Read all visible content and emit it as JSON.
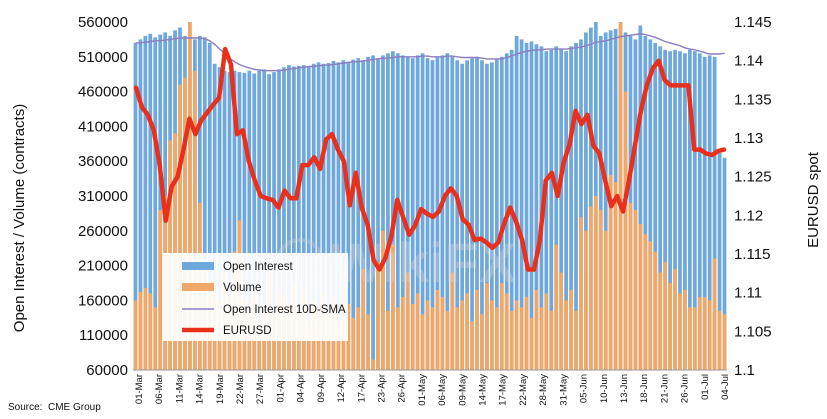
{
  "chart_data": {
    "type": "bar+line",
    "ylabel_left": "Open Interest / Volume (contracts)",
    "ylabel_right": "EURUSD spot",
    "left_ylim": [
      60000,
      560000
    ],
    "left_ticks": [
      "60000",
      "110000",
      "160000",
      "210000",
      "260000",
      "310000",
      "360000",
      "410000",
      "460000",
      "510000",
      "560000"
    ],
    "right_ylim": [
      1.1,
      1.145
    ],
    "right_ticks": [
      "1.1",
      "1.105",
      "1.11",
      "1.115",
      "1.12",
      "1.125",
      "1.13",
      "1.135",
      "1.14",
      "1.145"
    ],
    "x_tick_labels": [
      "01-Mar",
      "06-Mar",
      "11-Mar",
      "14-Mar",
      "19-Mar",
      "22-Mar",
      "27-Mar",
      "01-Apr",
      "04-Apr",
      "09-Apr",
      "12-Apr",
      "17-Apr",
      "23-Apr",
      "26-Apr",
      "01-May",
      "06-May",
      "09-May",
      "14-May",
      "17-May",
      "22-May",
      "28-May",
      "31-May",
      "05-Jun",
      "10-Jun",
      "13-Jun",
      "18-Jun",
      "21-Jun",
      "26-Jun",
      "01-Jul",
      "04-Jul"
    ],
    "legend": [
      {
        "name": "Open Interest",
        "color": "#6fa8dc"
      },
      {
        "name": "Volume",
        "color": "#f0a868"
      },
      {
        "name": "Open Interest 10D-SMA",
        "color": "#8e7cc3"
      },
      {
        "name": "EURUSD",
        "color": "#e8301c"
      }
    ],
    "source_label": "Source:",
    "source_value": "CME Group",
    "series": [
      {
        "name": "Open Interest",
        "values": [
          530000,
          535000,
          540000,
          543000,
          538000,
          542000,
          545000,
          540000,
          548000,
          552000,
          540000,
          538000,
          535000,
          540000,
          538000,
          530000,
          500000,
          495000,
          490000,
          488000,
          490000,
          488000,
          487000,
          490000,
          486000,
          490000,
          492000,
          485000,
          488000,
          492000,
          495000,
          498000,
          496000,
          497000,
          498000,
          496000,
          500000,
          502000,
          500000,
          501000,
          504000,
          502000,
          505000,
          503000,
          506000,
          508000,
          505000,
          510000,
          512000,
          508000,
          512000,
          515000,
          518000,
          515000,
          512000,
          510000,
          508000,
          512000,
          515000,
          508000,
          505000,
          510000,
          512000,
          515000,
          510000,
          505000,
          500000,
          505000,
          508000,
          510000,
          505000,
          500000,
          502000,
          506000,
          510000,
          515000,
          520000,
          540000,
          535000,
          530000,
          532000,
          528000,
          525000,
          518000,
          520000,
          525000,
          522000,
          518000,
          525000,
          530000,
          535000,
          545000,
          552000,
          560000,
          540000,
          545000,
          548000,
          550000,
          555000,
          545000,
          540000,
          535000,
          555000,
          540000,
          535000,
          530000,
          525000,
          520000,
          518000,
          520000,
          518000,
          515000,
          520000,
          518000,
          515000,
          510000,
          512000,
          510000,
          372000,
          365000
        ]
      },
      {
        "name": "Volume",
        "values": [
          160000,
          172000,
          178000,
          170000,
          150000,
          290000,
          310000,
          390000,
          400000,
          470000,
          480000,
          560000,
          490000,
          300000,
          215000,
          190000,
          175000,
          160000,
          200000,
          165000,
          230000,
          275000,
          160000,
          150000,
          170000,
          130000,
          145000,
          200000,
          140000,
          175000,
          165000,
          155000,
          185000,
          145000,
          175000,
          130000,
          160000,
          150000,
          170000,
          140000,
          165000,
          130000,
          180000,
          155000,
          135000,
          150000,
          205000,
          140000,
          75000,
          215000,
          260000,
          145000,
          240000,
          150000,
          165000,
          200000,
          155000,
          170000,
          140000,
          160000,
          150000,
          175000,
          165000,
          145000,
          200000,
          150000,
          160000,
          170000,
          130000,
          175000,
          140000,
          185000,
          160000,
          150000,
          185000,
          170000,
          145000,
          160000,
          150000,
          165000,
          135000,
          175000,
          150000,
          170000,
          145000,
          240000,
          200000,
          160000,
          175000,
          145000,
          280000,
          260000,
          295000,
          310000,
          290000,
          260000,
          340000,
          330000,
          560000,
          460000,
          300000,
          290000,
          270000,
          255000,
          245000,
          230000,
          200000,
          215000,
          185000,
          205000,
          170000,
          175000,
          150000,
          150000,
          165000,
          165000,
          160000,
          220000,
          145000,
          140000
        ]
      },
      {
        "name": "Open Interest 10D-SMA",
        "values": [
          530000,
          530000,
          531000,
          532000,
          533000,
          533000,
          534000,
          535000,
          536000,
          537000,
          537000,
          537000,
          537000,
          537000,
          536000,
          533000,
          528000,
          521000,
          515000,
          508000,
          503000,
          499000,
          496000,
          494000,
          492000,
          491000,
          490000,
          490000,
          490000,
          490000,
          491000,
          492000,
          493000,
          494000,
          495000,
          496000,
          496000,
          497000,
          498000,
          498000,
          499000,
          500000,
          501000,
          502000,
          503000,
          503000,
          504000,
          505000,
          506000,
          507000,
          508000,
          508000,
          509000,
          510000,
          510000,
          510000,
          510000,
          510000,
          511000,
          511000,
          510000,
          510000,
          510000,
          511000,
          511000,
          510000,
          509000,
          509000,
          509000,
          509000,
          508000,
          507000,
          507000,
          507000,
          507000,
          509000,
          511000,
          514000,
          516000,
          518000,
          519000,
          520000,
          520000,
          521000,
          521000,
          521000,
          521000,
          521000,
          522000,
          523000,
          524000,
          526000,
          528000,
          531000,
          532000,
          533000,
          535000,
          537000,
          539000,
          540000,
          541000,
          542000,
          543000,
          542000,
          540000,
          538000,
          535000,
          532000,
          530000,
          528000,
          526000,
          523000,
          521000,
          520000,
          518000,
          516000,
          514000,
          514000,
          514000,
          515000
        ]
      },
      {
        "name": "EURUSD",
        "values": [
          1.1365,
          1.134,
          1.133,
          1.131,
          1.1265,
          1.1193,
          1.1237,
          1.125,
          1.1285,
          1.1325,
          1.1305,
          1.1323,
          1.1333,
          1.1343,
          1.1352,
          1.1415,
          1.1395,
          1.1305,
          1.131,
          1.127,
          1.1245,
          1.1225,
          1.1222,
          1.122,
          1.121,
          1.1232,
          1.1222,
          1.1222,
          1.1265,
          1.1265,
          1.1275,
          1.126,
          1.1298,
          1.1305,
          1.1285,
          1.127,
          1.1213,
          1.1255,
          1.121,
          1.1188,
          1.1142,
          1.113,
          1.1145,
          1.1173,
          1.122,
          1.1197,
          1.1175,
          1.1187,
          1.1208,
          1.1202,
          1.1198,
          1.1205,
          1.1225,
          1.1235,
          1.1225,
          1.1195,
          1.1188,
          1.1168,
          1.117,
          1.1165,
          1.1158,
          1.1165,
          1.119,
          1.121,
          1.1192,
          1.1168,
          1.113,
          1.113,
          1.1168,
          1.1245,
          1.1255,
          1.1225,
          1.1268,
          1.1292,
          1.1335,
          1.1318,
          1.133,
          1.129,
          1.128,
          1.1245,
          1.1212,
          1.1225,
          1.1205,
          1.1245,
          1.129,
          1.1335,
          1.1368,
          1.139,
          1.14,
          1.1375,
          1.1368,
          1.1368,
          1.1368,
          1.1368,
          1.1285,
          1.1285,
          1.128,
          1.1278,
          1.1283,
          1.1285
        ]
      }
    ]
  }
}
